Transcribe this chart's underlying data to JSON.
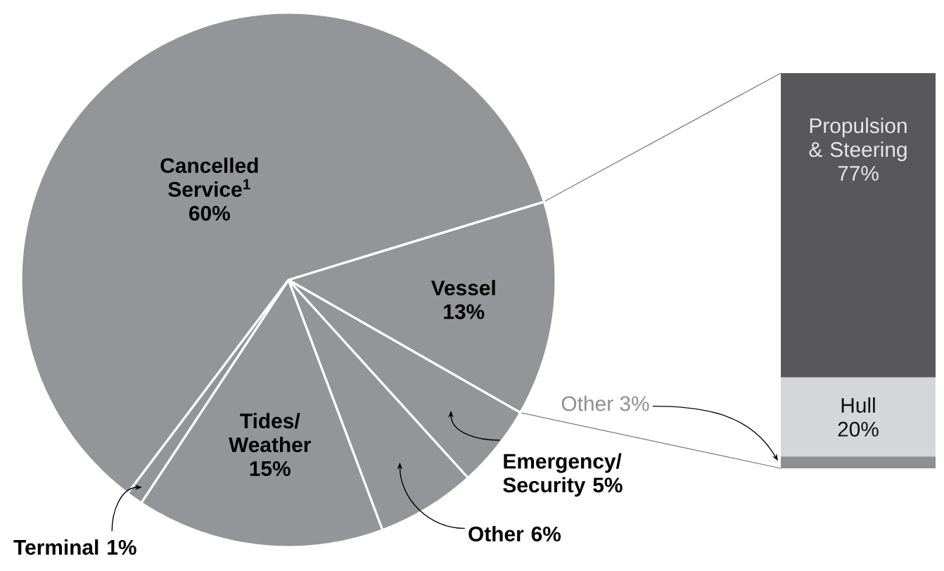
{
  "chart_data": [
    {
      "type": "pie",
      "categories": [
        "Vessel",
        "Emergency/ Security",
        "Other",
        "Tides/ Weather",
        "Terminal",
        "Cancelled Service$^{1}$"
      ],
      "values": [
        13,
        5,
        6,
        15,
        1,
        60
      ],
      "value_labels": [
        "13%",
        "5%",
        "6%",
        "15%",
        "1%",
        "60%"
      ],
      "colors": [
        "#939598",
        "#939598",
        "#939598",
        "#939598",
        "#939598",
        "#939598"
      ]
    },
    {
      "type": "bar",
      "stacked": true,
      "categories": [
        null
      ],
      "series": [
        {
          "name": "Other",
          "color": "#8e8f92",
          "values": [
            3
          ],
          "value_labels": [
            "3%"
          ]
        },
        {
          "name": "Hull",
          "color": "#d5d6d8",
          "values": [
            20
          ],
          "value_labels": [
            "20%"
          ]
        },
        {
          "name": "Propulsion & Steering",
          "color": "#58585b",
          "values": [
            77
          ],
          "value_labels": [
            "77%"
          ]
        }
      ]
    }
  ]
}
